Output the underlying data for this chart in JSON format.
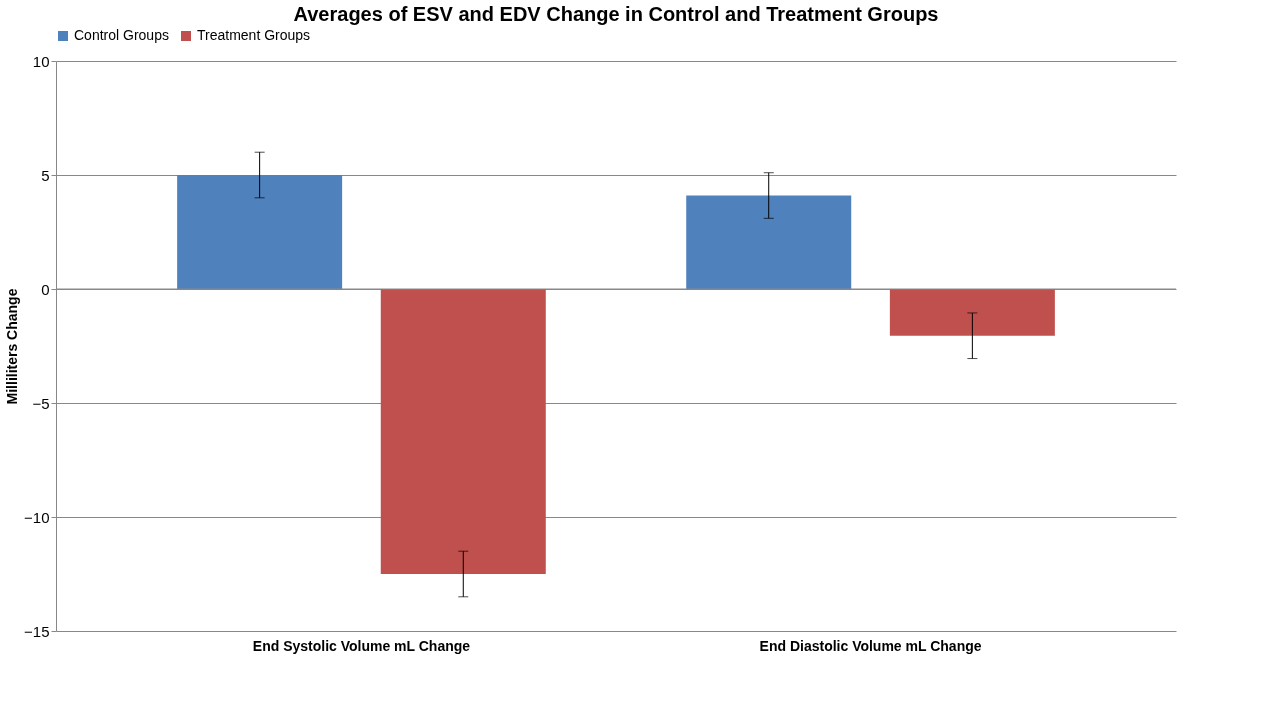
{
  "chart_data": {
    "type": "bar",
    "title": "Averages of ESV and EDV Change in Control and Treatment Groups",
    "ylabel": "Milliliters Change",
    "categories": [
      "End Systolic Volume mL Change",
      "End Diastolic Volume mL Change"
    ],
    "series": [
      {
        "name": "Control Groups",
        "color": "#4f81bd",
        "values": [
          5.0,
          4.1
        ],
        "errors": [
          1,
          1
        ]
      },
      {
        "name": "Treatment Groups",
        "color": "#c0504d",
        "values": [
          -12.5,
          -2.05
        ],
        "errors": [
          1,
          1
        ]
      }
    ],
    "ylim": [
      -15,
      10
    ],
    "yticks": [
      -15,
      -10,
      -5,
      0,
      5,
      10
    ],
    "grid": "y",
    "legend": "top"
  }
}
